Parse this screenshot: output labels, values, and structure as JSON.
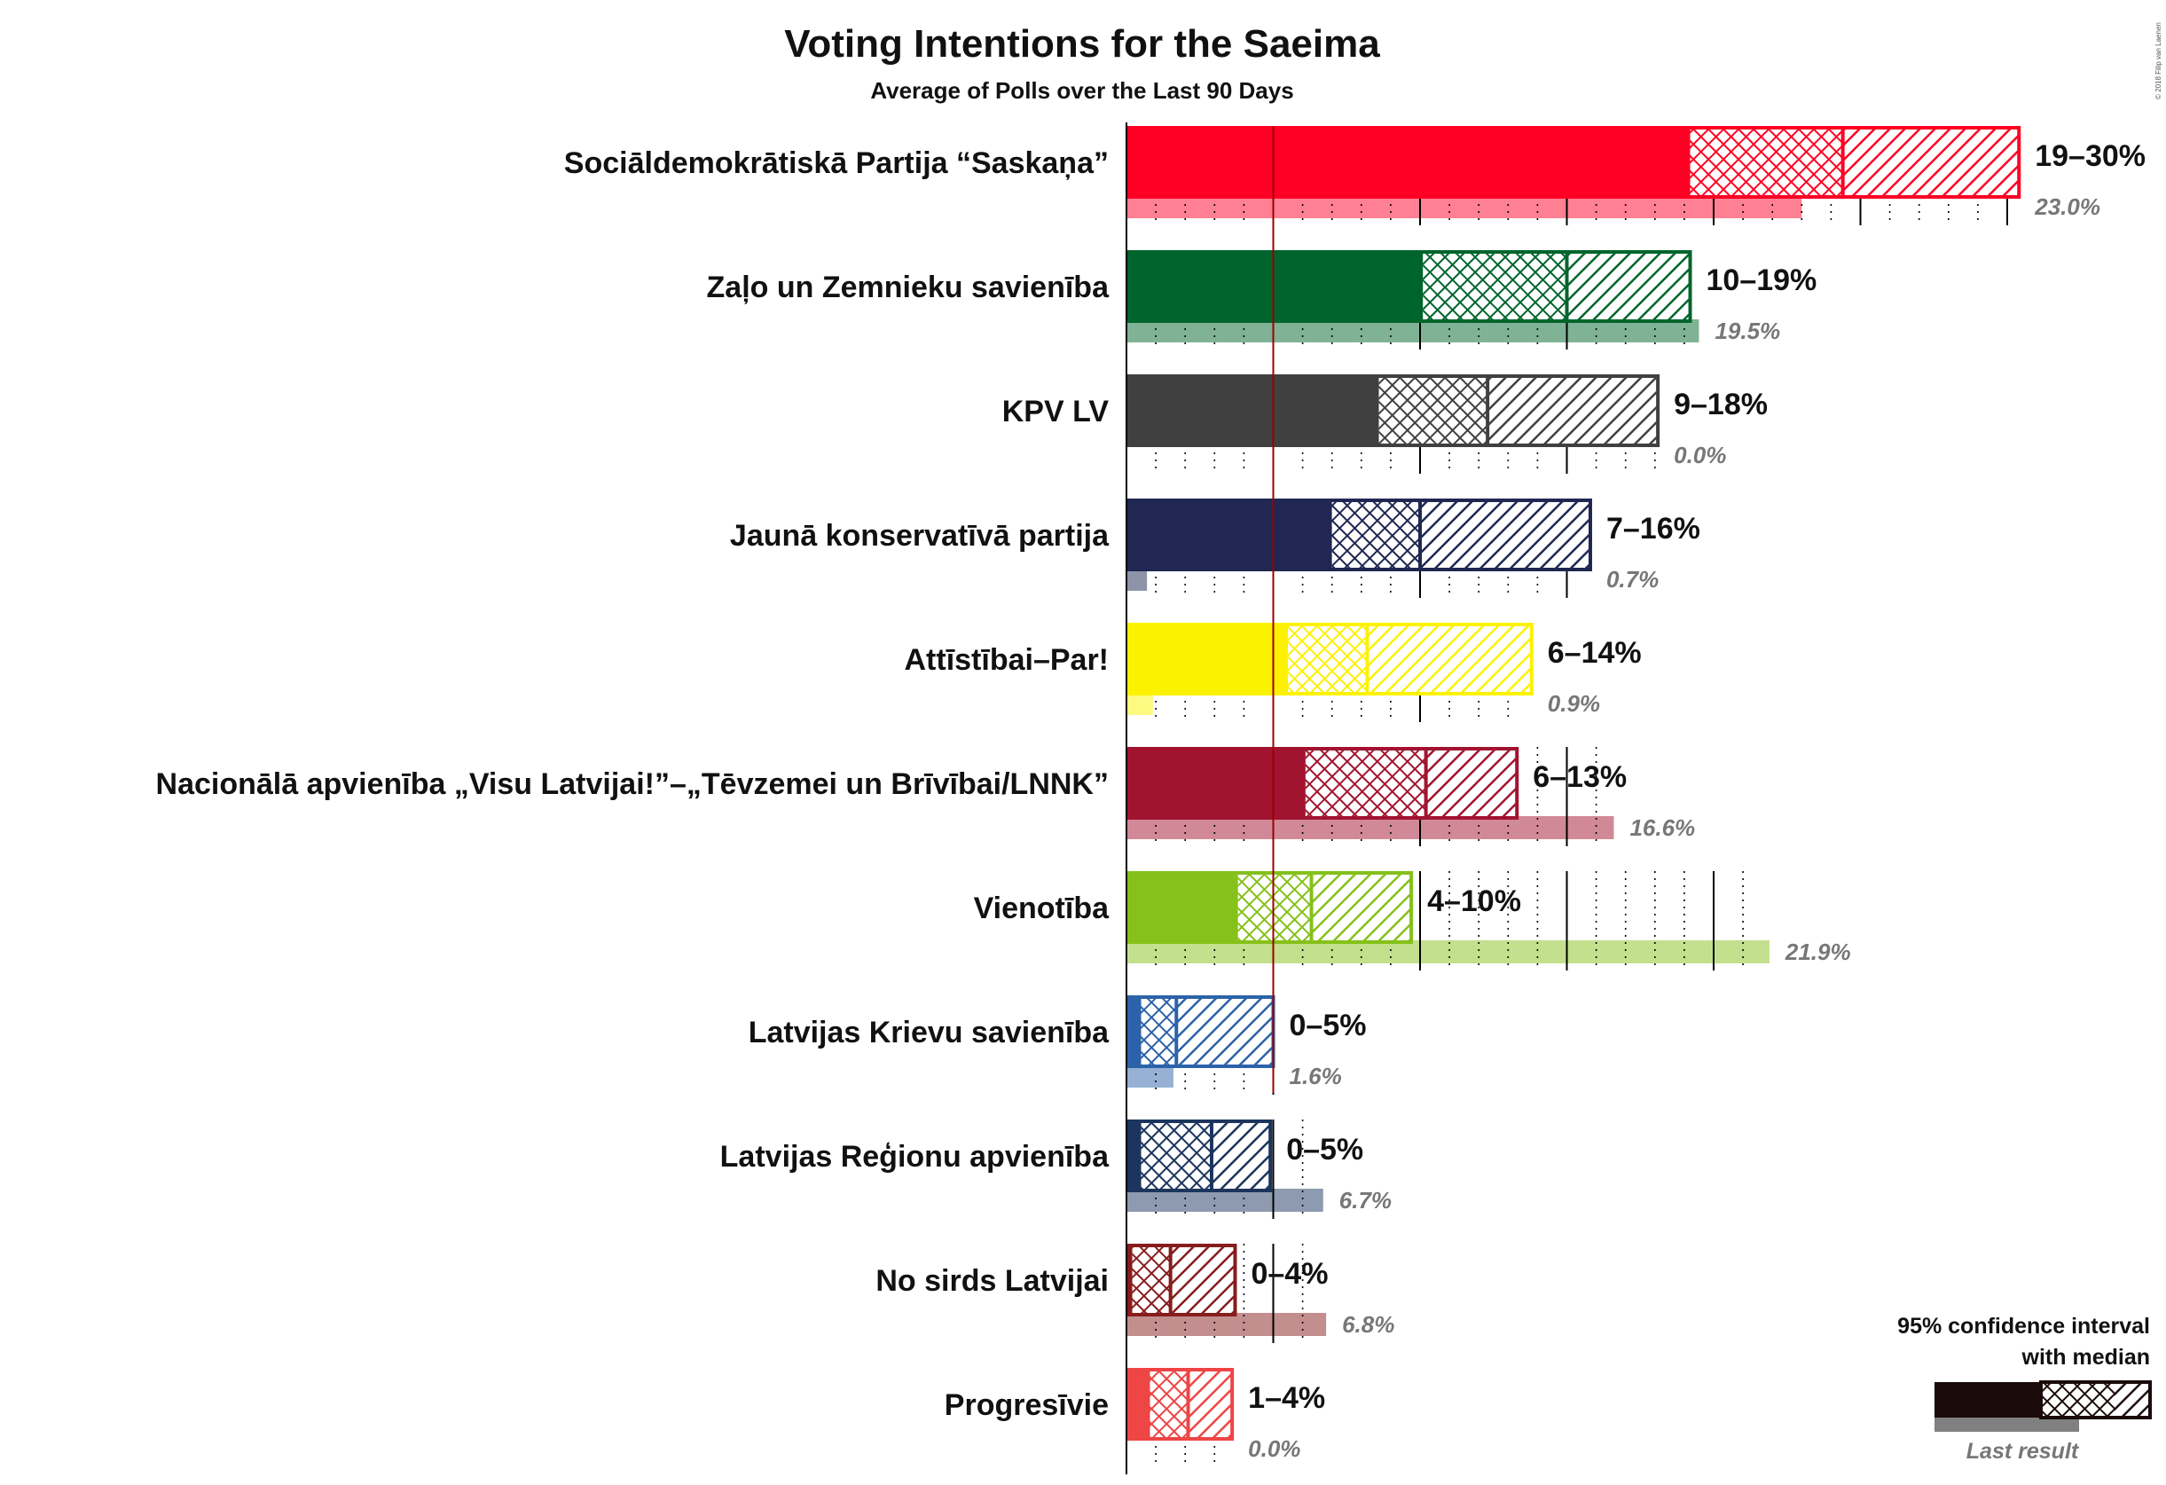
{
  "title": "Voting Intentions for the Saeima",
  "subtitle": "Average of Polls over the Last 90 Days",
  "copyright": "© 2018 Filip van Laenen",
  "legend": {
    "title_line1": "95% confidence interval",
    "title_line2": "with median",
    "last_result": "Last result",
    "color": "#1a0a0a"
  },
  "threshold": 5,
  "chart_data": {
    "type": "bar",
    "orientation": "horizontal",
    "x_unit": "percent",
    "xlim": [
      0,
      30.5
    ],
    "parties": [
      {
        "name": "Sociāldemokrātiskā Partija “Saskaņa”",
        "range_label": "19–30%",
        "last_label": "23.0%",
        "ci_low": 19.2,
        "median": 24.4,
        "ci_high": 30.4,
        "last": 23.0,
        "color": "#FF0024"
      },
      {
        "name": "Zaļo un Zemnieku savienība",
        "range_label": "10–19%",
        "last_label": "19.5%",
        "ci_low": 10.1,
        "median": 15.0,
        "ci_high": 19.2,
        "last": 19.5,
        "color": "#00652C"
      },
      {
        "name": "KPV LV",
        "range_label": "9–18%",
        "last_label": "0.0%",
        "ci_low": 8.6,
        "median": 12.3,
        "ci_high": 18.1,
        "last": 0.0,
        "color": "#404040"
      },
      {
        "name": "Jaunā konservatīvā partija",
        "range_label": "7–16%",
        "last_label": "0.7%",
        "ci_low": 7.0,
        "median": 10.0,
        "ci_high": 15.8,
        "last": 0.7,
        "color": "#1F2752"
      },
      {
        "name": "Attīstībai–Par!",
        "range_label": "6–14%",
        "last_label": "0.9%",
        "ci_low": 5.5,
        "median": 8.2,
        "ci_high": 13.8,
        "last": 0.9,
        "color": "#FCF200"
      },
      {
        "name": "Nacionālā apvienība „Visu Latvijai!”–„Tēvzemei un Brīvībai/LNNK”",
        "range_label": "6–13%",
        "last_label": "16.6%",
        "ci_low": 6.1,
        "median": 10.2,
        "ci_high": 13.3,
        "last": 16.6,
        "color": "#A2132F"
      },
      {
        "name": "Vienotība",
        "range_label": "4–10%",
        "last_label": "21.9%",
        "ci_low": 3.8,
        "median": 6.3,
        "ci_high": 9.7,
        "last": 21.9,
        "color": "#85C11A"
      },
      {
        "name": "Latvijas Krievu savienība",
        "range_label": "0–5%",
        "last_label": "1.6%",
        "ci_low": 0.5,
        "median": 1.7,
        "ci_high": 5.0,
        "last": 1.6,
        "color": "#2C62A9"
      },
      {
        "name": "Latvijas Reģionu apvienība",
        "range_label": "0–5%",
        "last_label": "6.7%",
        "ci_low": 0.5,
        "median": 2.9,
        "ci_high": 4.9,
        "last": 6.7,
        "color": "#1B355E"
      },
      {
        "name": "No sirds Latvijai",
        "range_label": "0–4%",
        "last_label": "6.8%",
        "ci_low": 0.2,
        "median": 1.5,
        "ci_high": 3.7,
        "last": 6.8,
        "color": "#871C1C"
      },
      {
        "name": "Progresīvie",
        "range_label": "1–4%",
        "last_label": "0.0%",
        "ci_low": 0.8,
        "median": 2.1,
        "ci_high": 3.6,
        "last": 0.0,
        "color": "#EE4545"
      }
    ]
  }
}
